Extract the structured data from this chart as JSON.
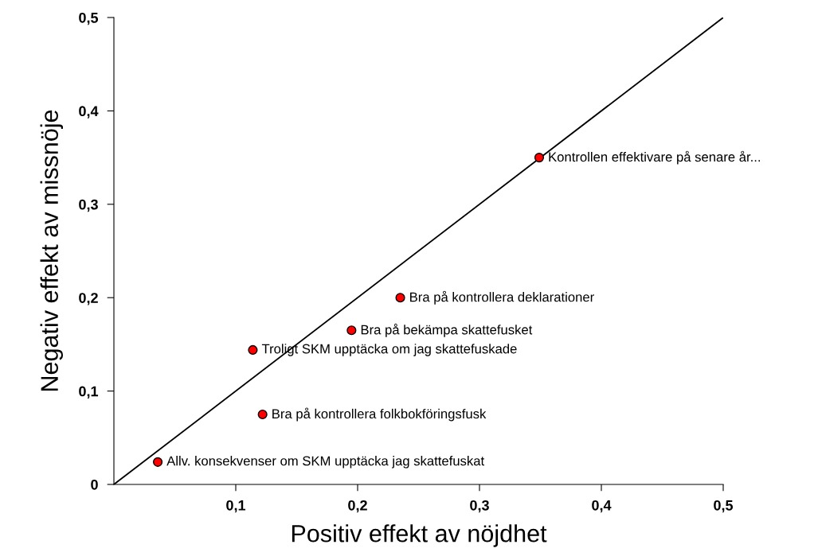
{
  "chart_data": {
    "type": "scatter",
    "xlabel": "Positiv effekt av nöjdhet",
    "ylabel": "Negativ effekt av missnöje",
    "x": [
      0.036,
      0.122,
      0.114,
      0.195,
      0.235,
      0.349
    ],
    "series": [
      {
        "color": "#ff0000",
        "marker": "circle",
        "values": [
          0.024,
          0.075,
          0.144,
          0.165,
          0.2,
          0.35
        ]
      },
      {
        "type": "line",
        "marker": "none",
        "color": "#000000",
        "x": [
          0,
          0.5
        ],
        "values": [
          0,
          0.5
        ]
      }
    ],
    "grid": false,
    "legend": false,
    "xlim": [
      0,
      0.5
    ],
    "ylim": [
      0,
      0.5
    ],
    "xticks": [
      {
        "value": 0.1,
        "label": "0,1"
      },
      {
        "value": 0.2,
        "label": "0,2"
      },
      {
        "value": 0.3,
        "label": "0,3"
      },
      {
        "value": 0.4,
        "label": "0,4"
      },
      {
        "value": 0.5,
        "label": "0,5"
      }
    ],
    "yticks": [
      {
        "value": 0,
        "label": "0"
      },
      {
        "value": 0.1,
        "label": "0,1"
      },
      {
        "value": 0.2,
        "label": "0,2"
      },
      {
        "value": 0.3,
        "label": "0,3"
      },
      {
        "value": 0.4,
        "label": "0,4"
      },
      {
        "value": 0.5,
        "label": "0,5"
      }
    ],
    "annotations": [
      {
        "text": "Allv. konsekvenser om SKM upptäcka jag skattefuskat",
        "x": 0.036,
        "y": 0.024
      },
      {
        "text": "Bra på kontrollera folkbokföringsfusk",
        "x": 0.122,
        "y": 0.075
      },
      {
        "text": "Troligt SKM upptäcka om jag skattefuskade",
        "x": 0.114,
        "y": 0.144
      },
      {
        "text": "Bra på bekämpa skattefusket",
        "x": 0.195,
        "y": 0.165
      },
      {
        "text": "Bra på kontrollera deklarationer",
        "x": 0.235,
        "y": 0.2
      },
      {
        "text": "Kontrollen effektivare på senare år...",
        "x": 0.349,
        "y": 0.35
      }
    ]
  }
}
